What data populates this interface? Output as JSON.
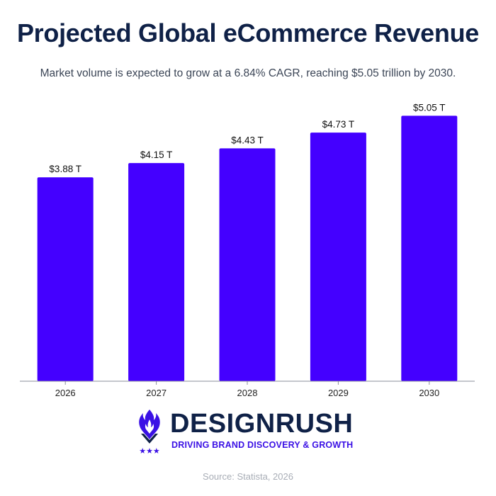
{
  "title": "Projected Global eCommerce Revenue",
  "subtitle": "Market volume is expected to grow at a 6.84% CAGR, reaching $5.05 trillion by 2030.",
  "chart_data": {
    "type": "bar",
    "categories": [
      "2026",
      "2027",
      "2028",
      "2029",
      "2030"
    ],
    "values": [
      3.88,
      4.15,
      4.43,
      4.73,
      5.05
    ],
    "data_labels": [
      "$3.88 T",
      "$4.15 T",
      "$4.43 T",
      "$4.73 T",
      "$5.05 T"
    ],
    "unit": "T",
    "bar_color": "#4400ff",
    "ylim": [
      0,
      5.5
    ],
    "grid": false,
    "legend": "none",
    "xlabel": "",
    "ylabel": ""
  },
  "logo": {
    "name": "DESIGNRUSH",
    "tagline": "DRIVING BRAND DISCOVERY & GROWTH",
    "brand_color": "#3a10e5",
    "text_color": "#0f2147"
  },
  "source": "Source: Statista, 2026"
}
